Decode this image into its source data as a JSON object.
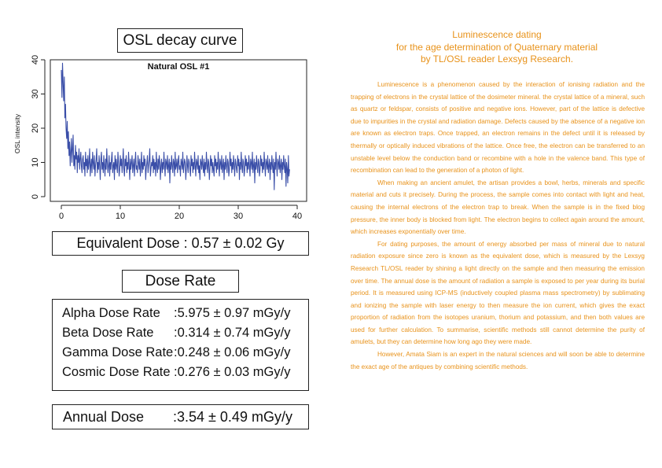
{
  "chart_title": "OSL decay curve",
  "chart_data": {
    "type": "line",
    "title": "Natural OSL #1",
    "xlabel": "",
    "ylabel": "OSL intensity",
    "xlim": [
      0,
      40
    ],
    "ylim": [
      0,
      40
    ],
    "xticks": [
      "0",
      "10",
      "20",
      "30",
      "40"
    ],
    "yticks": [
      "0",
      "10",
      "20",
      "30",
      "40"
    ],
    "line_color": "#3a4ea8",
    "x_step": 0.1,
    "y": [
      37,
      29,
      39,
      33,
      28,
      35,
      23,
      27,
      20,
      17,
      22,
      14,
      19,
      12,
      16,
      9,
      13,
      17,
      10,
      14,
      18,
      9,
      12,
      8,
      15,
      11,
      13,
      7,
      12,
      10,
      14,
      8,
      11,
      13,
      9,
      7,
      11,
      12,
      8,
      10,
      6,
      13,
      9,
      11,
      7,
      12,
      8,
      10,
      14,
      6,
      9,
      11,
      7,
      13,
      10,
      8,
      12,
      6,
      9,
      11,
      14,
      7,
      10,
      8,
      12,
      9,
      5,
      11,
      13,
      8,
      10,
      7,
      12,
      9,
      6,
      11,
      8,
      14,
      10,
      7,
      9,
      12,
      6,
      10,
      8,
      11,
      13,
      7,
      9,
      10,
      5,
      12,
      8,
      11,
      9,
      7,
      13,
      10,
      6,
      8,
      12,
      9,
      11,
      7,
      10,
      14,
      8,
      6,
      11,
      9,
      12,
      7,
      10,
      8,
      13,
      9,
      5,
      11,
      8,
      10,
      12,
      7,
      9,
      11,
      6,
      10,
      13,
      8,
      9,
      7,
      12,
      10,
      8,
      11,
      6,
      9,
      13,
      7,
      10,
      8,
      12,
      9,
      11,
      5,
      8,
      10,
      12,
      7,
      9,
      11,
      14,
      6,
      8,
      10,
      9,
      12,
      7,
      11,
      8,
      10,
      6,
      13,
      9,
      7,
      11,
      8,
      12,
      10,
      5,
      9,
      11,
      7,
      10,
      8,
      13,
      9,
      6,
      11,
      10,
      8,
      12,
      7,
      9,
      11,
      4,
      10,
      8,
      12,
      9,
      7,
      11,
      10,
      6,
      13,
      8,
      9,
      11,
      7,
      10,
      12,
      8,
      9,
      6,
      11,
      10,
      8,
      13,
      7,
      9,
      11,
      10,
      5,
      8,
      12,
      9,
      7,
      11,
      10,
      8,
      6,
      12,
      9,
      11,
      7,
      10,
      8,
      13,
      9,
      6,
      11,
      10,
      8,
      12,
      7,
      9,
      5,
      11,
      10,
      8,
      12,
      9,
      7,
      11,
      6,
      10,
      8,
      13,
      9,
      7,
      11,
      10,
      5,
      8,
      12,
      9,
      11,
      7,
      10,
      8,
      6,
      12,
      9,
      11,
      7,
      10,
      8,
      13,
      9,
      6,
      11,
      10,
      8,
      12,
      7,
      9,
      11,
      5,
      10,
      8,
      12,
      9,
      7,
      11,
      10,
      6,
      8,
      13,
      9,
      11,
      7,
      10,
      8,
      12,
      9,
      6,
      11,
      10,
      8,
      7,
      12,
      9,
      11,
      5,
      10,
      8,
      13,
      9,
      7,
      11,
      10,
      6,
      8,
      12,
      9,
      11,
      7,
      10,
      8,
      12,
      9,
      6,
      11,
      10,
      8,
      13,
      7,
      9,
      11,
      4,
      10,
      8,
      12,
      9,
      7,
      11,
      10,
      6,
      8,
      12,
      9,
      11,
      7,
      10,
      8,
      13,
      9,
      6,
      11,
      10,
      8,
      12,
      7,
      9,
      11,
      5,
      10,
      8,
      12,
      9,
      7,
      11,
      2,
      10,
      8,
      13,
      9,
      6,
      11,
      10,
      8,
      12,
      7,
      9,
      11,
      5,
      10,
      8,
      12,
      9,
      7,
      11,
      3,
      10,
      8,
      4,
      12,
      6,
      8
    ]
  },
  "equivalent_dose": {
    "label": "Equivalent Dose",
    "value": ": 0.57 ± 0.02 Gy"
  },
  "dose_rate_title": "Dose Rate",
  "dose_rates": [
    {
      "label": "Alpha Dose Rate",
      "value": ":5.975 ± 0.97  mGy/y"
    },
    {
      "label": "Beta Dose Rate",
      "value": ":0.314 ± 0.74  mGy/y"
    },
    {
      "label": "Gamma Dose Rate",
      "value": ":0.248 ± 0.06  mGy/y"
    },
    {
      "label": "Cosmic Dose Rate",
      "value": ":0.276 ± 0.03  mGy/y"
    }
  ],
  "annual_dose": {
    "label": "Annual Dose",
    "value": ":3.54 ± 0.49 mGy/y"
  },
  "right_title": {
    "line1": "Luminescence dating",
    "line2": "for the age determination of Quaternary material",
    "line3": "by TL/OSL reader Lexsyg Research."
  },
  "paragraphs": [
    "Luminescence is a phenomenon caused by the interaction of ionising radiation and the trapping of electrons in the crystal lattice of the dosimeter mineral. the crystal lattice of a mineral, such as quartz or feldspar, consists of positive and negative ions. However, part of the lattice is defective due to impurities in the crystal and radiation damage. Defects caused by the absence of a negative ion are known as electron traps. Once trapped, an electron remains in the defect until it is released by thermally or optically induced vibrations of the lattice. Once free, the electron can be transferred to an unstable level below the conduction band or recombine with a hole in the valence band. This type of recombination can lead to the generation of a photon of light.",
    "When making an ancient amulet, the artisan provides a bowl, herbs, minerals and specific material and cuts it precisely. During the process, the sample comes into contact with light and heat, causing the internal electrons of the electron trap to break. When the sample is in the fixed blog pressure, the inner body is blocked from light. The electron begins to collect again around the amount, which increases exponentially over time.",
    "For dating purposes, the amount of energy absorbed per mass of mineral due to natural radiation exposure since zero is known as the equivalent dose, which is measured by the Lexsyg Research TL/OSL reader by shining a light directly on the sample and then measuring the emission over time. The annual dose is the amount of radiation a sample is exposed to per year during its burial period. It is measured using ICP-MS (inductively coupled plasma mass spectrometry) by sublimating and ionizing the sample with laser energy to then measure the ion current, which gives the exact proportion of radiation from the isotopes uranium, thorium and potassium, and then both values are used for further calculation. To summarise, scientific methods still cannot determine the purity of amulets, but they can determine how long ago they were made.",
    "However, Amata Siam is an expert in the natural sciences and will soon be able to determine the exact age of the antiques by combining scientific methods."
  ]
}
